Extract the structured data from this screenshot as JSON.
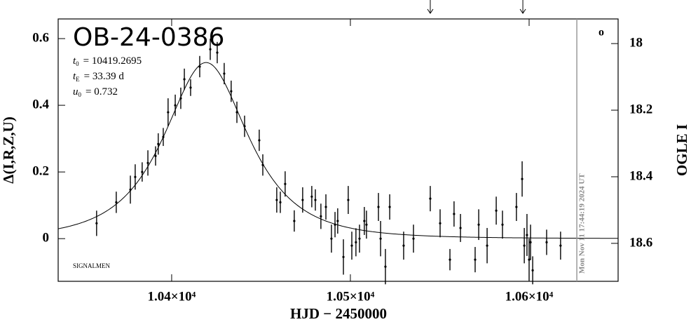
{
  "chart_data": {
    "type": "errorbar",
    "title": "OB-24-0386",
    "params": [
      {
        "symbol": "t",
        "subscript": "0",
        "label": "= 10419.2695",
        "value": 10419.2695
      },
      {
        "symbol": "t",
        "subscript": "E",
        "label": "= 33.39 d",
        "value": 33.39
      },
      {
        "symbol": "u",
        "subscript": "0",
        "label": "= 0.732",
        "value": 0.732
      }
    ],
    "annotation": "SIGNALMEN",
    "corner_mark": "o",
    "date_label": "Mon Nov 11 17:44:19 2024 UT",
    "date_line_x": 10626.7,
    "arrows_x": [
      10544.7,
      10596.5
    ],
    "x_label": "HJD − 2450000",
    "y_label": "Δ(I,R,Z,U)",
    "y2_label": "OGLE I",
    "xlim": [
      10336.5,
      10649.8
    ],
    "ylim": [
      -0.128,
      0.659
    ],
    "y2lim": [
      18.714,
      17.926
    ],
    "xticks": [
      {
        "value": 10400,
        "label": "1.04×10⁴"
      },
      {
        "value": 10500,
        "label": "1.05×10⁴"
      },
      {
        "value": 10600,
        "label": "1.06×10⁴"
      }
    ],
    "yticks": [
      0,
      0.2,
      0.4,
      0.6
    ],
    "y2ticks": [
      18,
      18.2,
      18.4,
      18.6
    ],
    "color": "#000000",
    "curve_color": "#000000",
    "series": [
      {
        "x": [
          10358.0,
          10369.0,
          10376.9,
          10379.6,
          10383.5,
          10386.7,
          10391.0,
          10392.5,
          10395.3,
          10398.0,
          10402.0,
          10405.1,
          10407.1,
          10410.6,
          10415.7,
          10421.6,
          10425.5,
          10429.4,
          10433.3,
          10436.5,
          10440.8,
          10449.0,
          10451.0,
          10458.8,
          10460.8,
          10463.5,
          10468.6,
          10473.3,
          10478.4,
          10480.4,
          10483.5,
          10486.3,
          10489.4,
          10491.4,
          10492.9,
          10496.1,
          10498.8,
          10500.8,
          10503.1,
          10505.1,
          10507.8,
          10509.0,
          10515.7,
          10516.9,
          10519.6,
          10522.0,
          10529.8,
          10535.3,
          10544.7,
          10550.2,
          10555.7,
          10558.0,
          10561.6,
          10569.8,
          10571.8,
          10576.5,
          10581.6,
          10585.1,
          10592.9,
          10596.1,
          10597.3,
          10598.8,
          10600.0,
          10600.8,
          10602.0,
          10609.8,
          10617.6
        ],
        "values": [
          0.046,
          0.109,
          0.147,
          0.185,
          0.2,
          0.227,
          0.248,
          0.284,
          0.305,
          0.379,
          0.4,
          0.421,
          0.478,
          0.453,
          0.516,
          0.568,
          0.558,
          0.495,
          0.442,
          0.379,
          0.337,
          0.295,
          0.221,
          0.116,
          0.109,
          0.164,
          0.053,
          0.116,
          0.126,
          0.116,
          0.067,
          0.095,
          0.0,
          0.042,
          0.053,
          -0.055,
          0.116,
          -0.021,
          -0.011,
          0.0,
          0.053,
          0.042,
          0.095,
          0.0,
          -0.084,
          0.095,
          -0.021,
          0.0,
          0.12,
          0.046,
          -0.063,
          0.074,
          0.032,
          -0.063,
          0.042,
          -0.021,
          0.084,
          0.042,
          0.095,
          0.179,
          -0.021,
          0.011,
          -0.063,
          -0.011,
          -0.095,
          -0.011,
          -0.021
        ],
        "errors": [
          0.038,
          0.032,
          0.042,
          0.038,
          0.029,
          0.038,
          0.029,
          0.032,
          0.027,
          0.042,
          0.032,
          0.032,
          0.032,
          0.025,
          0.032,
          0.032,
          0.032,
          0.032,
          0.032,
          0.032,
          0.032,
          0.032,
          0.032,
          0.038,
          0.032,
          0.038,
          0.032,
          0.038,
          0.032,
          0.032,
          0.038,
          0.038,
          0.042,
          0.038,
          0.038,
          0.053,
          0.042,
          0.042,
          0.042,
          0.042,
          0.042,
          0.042,
          0.042,
          0.053,
          0.053,
          0.038,
          0.042,
          0.042,
          0.038,
          0.042,
          0.032,
          0.038,
          0.042,
          0.038,
          0.046,
          0.053,
          0.042,
          0.042,
          0.042,
          0.053,
          0.053,
          0.063,
          0.063,
          0.053,
          0.042,
          0.038,
          0.042
        ]
      }
    ]
  }
}
